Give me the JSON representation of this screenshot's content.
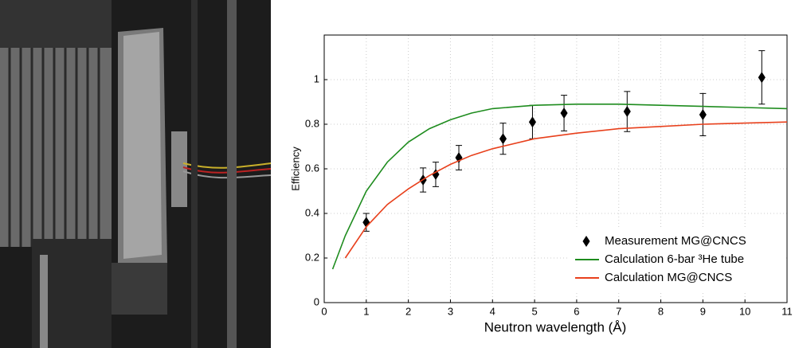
{
  "chart_data": {
    "type": "line",
    "xlabel": "Neutron wavelength (Å)",
    "ylabel": "Efficiency",
    "xlim": [
      0,
      11
    ],
    "ylim": [
      0,
      1.2
    ],
    "xticks": [
      0,
      1,
      2,
      3,
      4,
      5,
      6,
      7,
      8,
      9,
      10,
      11
    ],
    "yticks": [
      0,
      0.2,
      0.4,
      0.6,
      0.8,
      1
    ],
    "grid": true,
    "legend": "lower right",
    "series": [
      {
        "name": "Measurement MG@CNCS",
        "type": "scatter",
        "color": "#000000",
        "x": [
          1,
          2.35,
          2.65,
          3.2,
          4.25,
          4.95,
          5.7,
          7.2,
          9,
          10.4
        ],
        "values": [
          0.36,
          0.55,
          0.575,
          0.65,
          0.735,
          0.81,
          0.85,
          0.857,
          0.843,
          1.01
        ],
        "errors": [
          0.04,
          0.054,
          0.055,
          0.055,
          0.07,
          0.075,
          0.08,
          0.09,
          0.095,
          0.12
        ]
      },
      {
        "name": "Calculation 6-bar ³He tube",
        "type": "line",
        "color": "#1e8c1e",
        "x": [
          0.2,
          0.5,
          1,
          1.5,
          2,
          2.5,
          3,
          3.5,
          4,
          5,
          6,
          7,
          8,
          9,
          10,
          11
        ],
        "values": [
          0.15,
          0.3,
          0.5,
          0.63,
          0.72,
          0.78,
          0.82,
          0.85,
          0.87,
          0.885,
          0.89,
          0.89,
          0.885,
          0.88,
          0.875,
          0.87
        ]
      },
      {
        "name": "Calculation MG@CNCS",
        "type": "line",
        "color": "#e8401c",
        "x": [
          0.5,
          1,
          1.5,
          2,
          2.5,
          3,
          3.5,
          4,
          5,
          6,
          7,
          8,
          9,
          10,
          11
        ],
        "values": [
          0.2,
          0.34,
          0.44,
          0.51,
          0.57,
          0.62,
          0.66,
          0.69,
          0.735,
          0.76,
          0.78,
          0.79,
          0.8,
          0.805,
          0.81
        ]
      }
    ]
  }
}
